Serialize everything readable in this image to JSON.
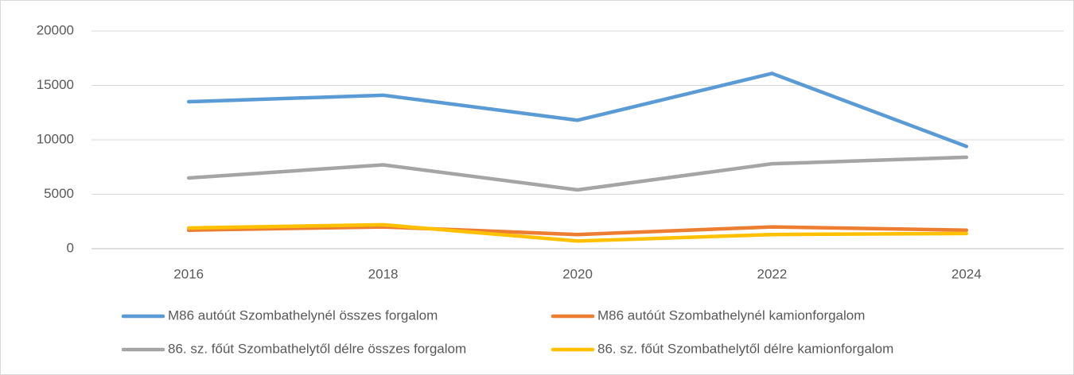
{
  "chart_data": {
    "type": "line",
    "categories": [
      "2016",
      "2018",
      "2020",
      "2022",
      "2024"
    ],
    "series": [
      {
        "name": "M86 autóút Szombathelynél összes forgalom",
        "color": "#5b9bd5",
        "values": [
          13500,
          14100,
          11800,
          16100,
          9400
        ]
      },
      {
        "name": "M86 autóút Szombathelynél kamionforgalom",
        "color": "#ed7d31",
        "values": [
          1700,
          2000,
          1300,
          2000,
          1700
        ]
      },
      {
        "name": "86. sz. főút Szombathelytől délre összes forgalom",
        "color": "#a5a5a5",
        "values": [
          6500,
          7700,
          5400,
          7800,
          8400
        ]
      },
      {
        "name": "86. sz. főút Szombathelytől délre kamionforgalom",
        "color": "#ffc000",
        "values": [
          1900,
          2200,
          700,
          1300,
          1400
        ]
      }
    ],
    "ylim": [
      0,
      20000
    ],
    "yticks": [
      0,
      5000,
      10000,
      15000,
      20000
    ],
    "grid": true,
    "legend": "bottom"
  }
}
